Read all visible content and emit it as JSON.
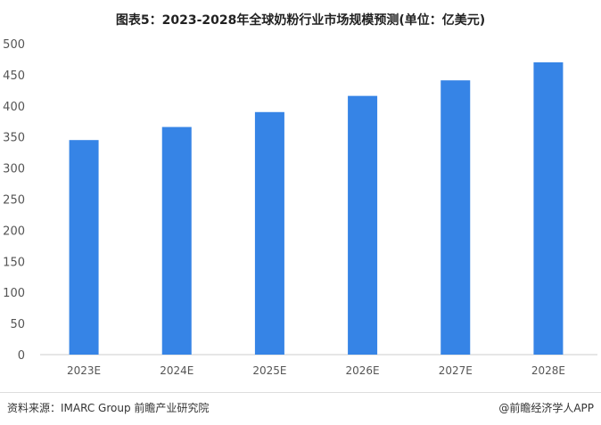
{
  "chart_data": {
    "type": "bar",
    "title": "图表5：2023-2028年全球奶粉行业市场规模预测(单位：亿美元)",
    "categories": [
      "2023E",
      "2024E",
      "2025E",
      "2026E",
      "2027E",
      "2028E"
    ],
    "values": [
      345,
      366,
      390,
      416,
      441,
      470
    ],
    "xlabel": "",
    "ylabel": "",
    "ylim": [
      0,
      500
    ],
    "yticks": [
      0,
      50,
      100,
      150,
      200,
      250,
      300,
      350,
      400,
      450,
      500
    ],
    "grid": false,
    "bar_color": "#3684e6"
  },
  "footer": {
    "source": "资料来源：IMARC Group 前瞻产业研究院",
    "app": "@前瞻经济学人APP"
  },
  "watermark": "前瞻产业研究院"
}
